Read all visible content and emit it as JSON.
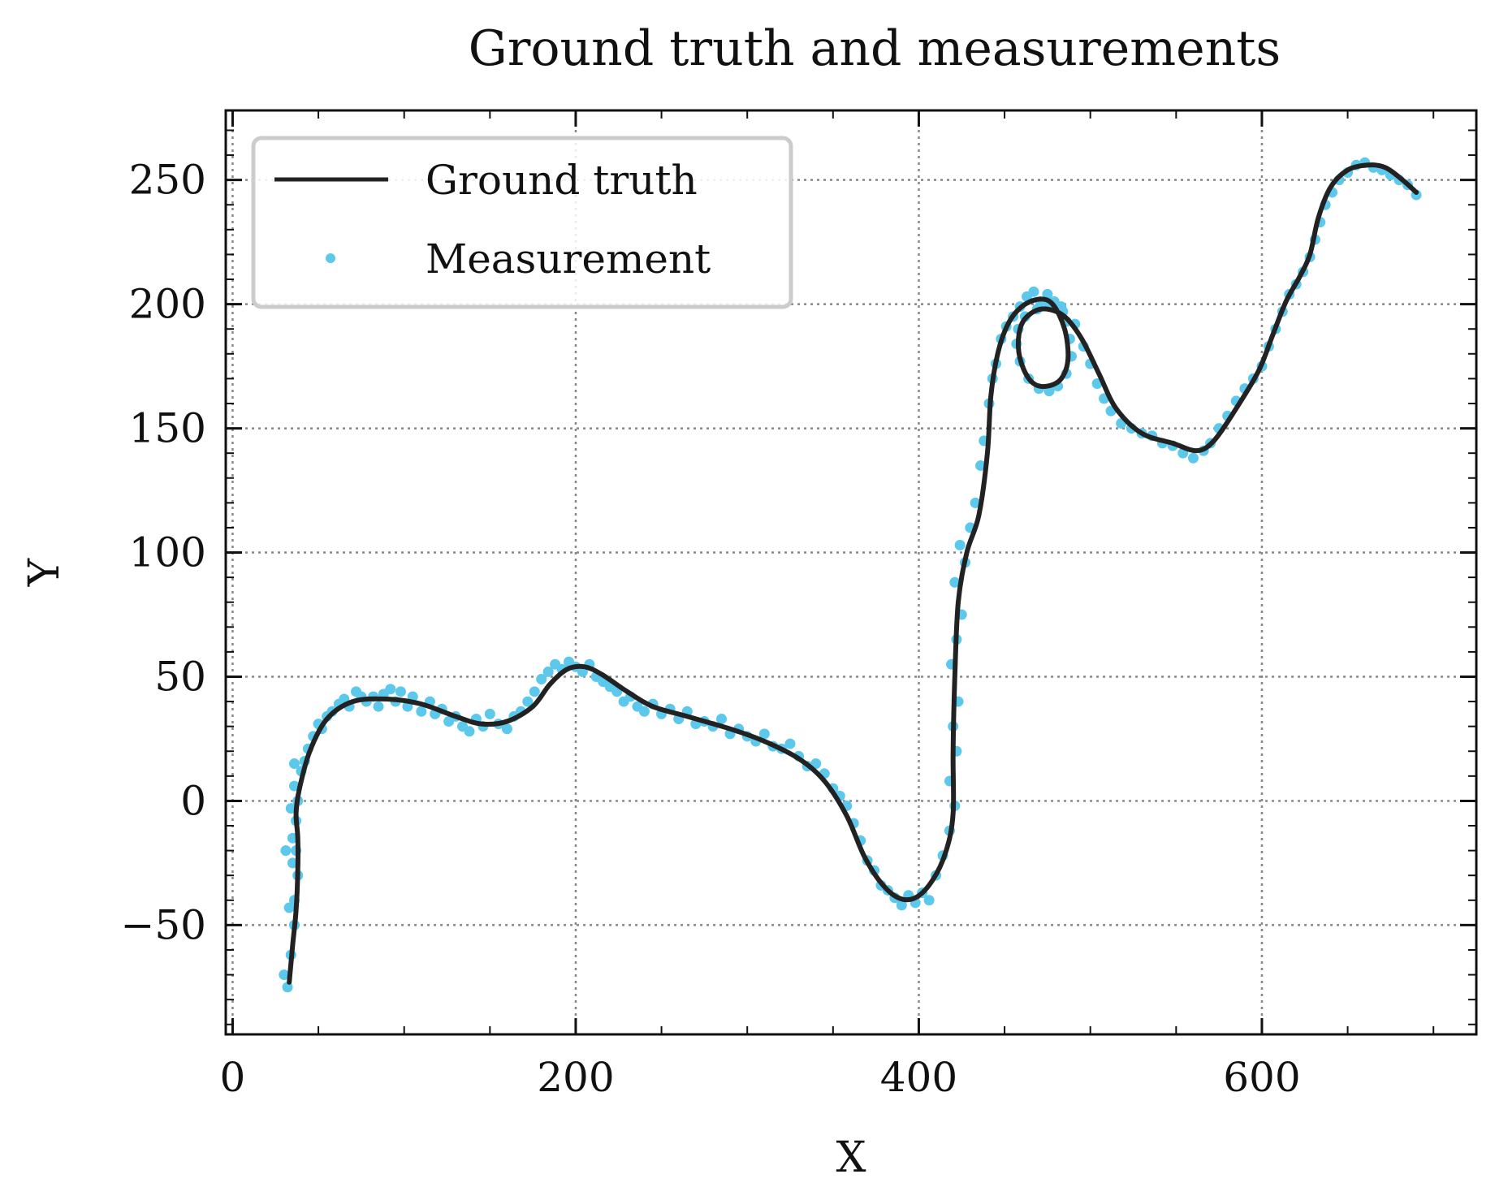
{
  "chart_data": {
    "type": "line",
    "title": "Ground truth and measurements",
    "xlabel": "X",
    "ylabel": "Y",
    "xlim": [
      -4,
      725
    ],
    "ylim": [
      -94,
      278
    ],
    "xticks": [
      0,
      200,
      400,
      600
    ],
    "yticks": [
      -50,
      0,
      50,
      100,
      150,
      200,
      250
    ],
    "x_minor_step": 50,
    "y_minor_step": 10,
    "x_tick_labels": [
      "0",
      "200",
      "400",
      "600"
    ],
    "y_tick_labels": [
      "−50",
      "0",
      "50",
      "100",
      "150",
      "200",
      "250"
    ],
    "grid": true,
    "legend": {
      "location": "top-left",
      "entries": [
        "Ground truth",
        "Measurement"
      ]
    },
    "colors": {
      "ground_truth": "#222222",
      "measurement": "#5bc8ec"
    },
    "series": [
      {
        "name": "Ground truth",
        "kind": "line",
        "points": [
          [
            33,
            -73
          ],
          [
            35,
            -58
          ],
          [
            37,
            -44
          ],
          [
            38,
            -28
          ],
          [
            38,
            -15
          ],
          [
            37,
            -5
          ],
          [
            39,
            5
          ],
          [
            45,
            20
          ],
          [
            55,
            33
          ],
          [
            70,
            40
          ],
          [
            90,
            41
          ],
          [
            110,
            39
          ],
          [
            130,
            34
          ],
          [
            145,
            31
          ],
          [
            160,
            32
          ],
          [
            175,
            38
          ],
          [
            185,
            47
          ],
          [
            195,
            53
          ],
          [
            205,
            54
          ],
          [
            215,
            51
          ],
          [
            230,
            44
          ],
          [
            245,
            38
          ],
          [
            265,
            34
          ],
          [
            290,
            29
          ],
          [
            310,
            24
          ],
          [
            330,
            17
          ],
          [
            345,
            8
          ],
          [
            358,
            -6
          ],
          [
            368,
            -22
          ],
          [
            378,
            -33
          ],
          [
            388,
            -39
          ],
          [
            398,
            -39
          ],
          [
            408,
            -32
          ],
          [
            416,
            -20
          ],
          [
            420,
            -5
          ],
          [
            420,
            20
          ],
          [
            421,
            50
          ],
          [
            423,
            80
          ],
          [
            428,
            100
          ],
          [
            435,
            115
          ],
          [
            440,
            140
          ],
          [
            442,
            163
          ],
          [
            446,
            180
          ],
          [
            452,
            192
          ],
          [
            460,
            199
          ],
          [
            470,
            202
          ],
          [
            478,
            200
          ],
          [
            485,
            190
          ],
          [
            487,
            178
          ],
          [
            483,
            170
          ],
          [
            475,
            167
          ],
          [
            467,
            168
          ],
          [
            461,
            174
          ],
          [
            458,
            183
          ],
          [
            460,
            192
          ],
          [
            467,
            197
          ],
          [
            475,
            198
          ],
          [
            485,
            195
          ],
          [
            495,
            186
          ],
          [
            505,
            172
          ],
          [
            515,
            158
          ],
          [
            530,
            148
          ],
          [
            548,
            144
          ],
          [
            562,
            141
          ],
          [
            572,
            145
          ],
          [
            585,
            158
          ],
          [
            598,
            173
          ],
          [
            606,
            187
          ],
          [
            614,
            201
          ],
          [
            622,
            211
          ],
          [
            628,
            220
          ],
          [
            633,
            235
          ],
          [
            640,
            247
          ],
          [
            650,
            254
          ],
          [
            662,
            256
          ],
          [
            672,
            255
          ],
          [
            682,
            250
          ],
          [
            690,
            245
          ]
        ]
      },
      {
        "name": "Measurement",
        "kind": "scatter",
        "points": [
          [
            30,
            -70
          ],
          [
            32,
            -75
          ],
          [
            34,
            -62
          ],
          [
            36,
            -50
          ],
          [
            33,
            -43
          ],
          [
            36,
            -40
          ],
          [
            38,
            -30
          ],
          [
            35,
            -25
          ],
          [
            37,
            -20
          ],
          [
            31,
            -20
          ],
          [
            35,
            -15
          ],
          [
            37,
            -8
          ],
          [
            34,
            -3
          ],
          [
            38,
            0
          ],
          [
            36,
            6
          ],
          [
            40,
            12
          ],
          [
            36,
            15
          ],
          [
            42,
            16
          ],
          [
            44,
            21
          ],
          [
            47,
            26
          ],
          [
            50,
            31
          ],
          [
            52,
            29
          ],
          [
            55,
            34
          ],
          [
            58,
            36
          ],
          [
            62,
            39
          ],
          [
            65,
            41
          ],
          [
            68,
            38
          ],
          [
            72,
            44
          ],
          [
            75,
            42
          ],
          [
            78,
            40
          ],
          [
            82,
            42
          ],
          [
            85,
            38
          ],
          [
            88,
            43
          ],
          [
            92,
            45
          ],
          [
            95,
            40
          ],
          [
            98,
            44
          ],
          [
            102,
            38
          ],
          [
            105,
            42
          ],
          [
            110,
            36
          ],
          [
            115,
            40
          ],
          [
            118,
            35
          ],
          [
            122,
            37
          ],
          [
            126,
            32
          ],
          [
            130,
            34
          ],
          [
            134,
            30
          ],
          [
            138,
            28
          ],
          [
            142,
            33
          ],
          [
            146,
            30
          ],
          [
            150,
            35
          ],
          [
            155,
            31
          ],
          [
            160,
            29
          ],
          [
            164,
            34
          ],
          [
            168,
            36
          ],
          [
            172,
            40
          ],
          [
            176,
            44
          ],
          [
            180,
            49
          ],
          [
            184,
            52
          ],
          [
            188,
            55
          ],
          [
            192,
            53
          ],
          [
            196,
            56
          ],
          [
            200,
            54
          ],
          [
            204,
            52
          ],
          [
            208,
            55
          ],
          [
            212,
            50
          ],
          [
            216,
            48
          ],
          [
            220,
            46
          ],
          [
            224,
            44
          ],
          [
            228,
            40
          ],
          [
            232,
            42
          ],
          [
            236,
            38
          ],
          [
            240,
            36
          ],
          [
            245,
            39
          ],
          [
            250,
            35
          ],
          [
            255,
            37
          ],
          [
            260,
            33
          ],
          [
            265,
            36
          ],
          [
            270,
            31
          ],
          [
            275,
            32
          ],
          [
            280,
            30
          ],
          [
            285,
            33
          ],
          [
            290,
            27
          ],
          [
            295,
            29
          ],
          [
            300,
            26
          ],
          [
            305,
            24
          ],
          [
            310,
            27
          ],
          [
            315,
            22
          ],
          [
            320,
            21
          ],
          [
            325,
            23
          ],
          [
            330,
            18
          ],
          [
            335,
            14
          ],
          [
            340,
            15
          ],
          [
            345,
            11
          ],
          [
            350,
            5
          ],
          [
            354,
            2
          ],
          [
            358,
            -2
          ],
          [
            362,
            -9
          ],
          [
            366,
            -16
          ],
          [
            370,
            -24
          ],
          [
            374,
            -28
          ],
          [
            378,
            -34
          ],
          [
            382,
            -36
          ],
          [
            386,
            -39
          ],
          [
            390,
            -42
          ],
          [
            394,
            -38
          ],
          [
            398,
            -41
          ],
          [
            402,
            -37
          ],
          [
            406,
            -40
          ],
          [
            410,
            -30
          ],
          [
            414,
            -22
          ],
          [
            418,
            -12
          ],
          [
            421,
            -2
          ],
          [
            418,
            8
          ],
          [
            422,
            20
          ],
          [
            420,
            30
          ],
          [
            423,
            40
          ],
          [
            419,
            55
          ],
          [
            422,
            65
          ],
          [
            425,
            75
          ],
          [
            421,
            88
          ],
          [
            427,
            96
          ],
          [
            424,
            103
          ],
          [
            430,
            110
          ],
          [
            433,
            120
          ],
          [
            436,
            135
          ],
          [
            438,
            145
          ],
          [
            441,
            160
          ],
          [
            443,
            170
          ],
          [
            445,
            176
          ],
          [
            448,
            186
          ],
          [
            451,
            191
          ],
          [
            455,
            195
          ],
          [
            459,
            199
          ],
          [
            463,
            203
          ],
          [
            467,
            205
          ],
          [
            471,
            201
          ],
          [
            475,
            204
          ],
          [
            479,
            201
          ],
          [
            483,
            199
          ],
          [
            486,
            193
          ],
          [
            488,
            186
          ],
          [
            489,
            179
          ],
          [
            486,
            172
          ],
          [
            481,
            167
          ],
          [
            476,
            165
          ],
          [
            470,
            166
          ],
          [
            464,
            170
          ],
          [
            459,
            177
          ],
          [
            457,
            184
          ],
          [
            458,
            190
          ],
          [
            462,
            195
          ],
          [
            469,
            198
          ],
          [
            476,
            199
          ],
          [
            484,
            197
          ],
          [
            491,
            192
          ],
          [
            496,
            183
          ],
          [
            500,
            176
          ],
          [
            504,
            168
          ],
          [
            508,
            162
          ],
          [
            512,
            157
          ],
          [
            518,
            152
          ],
          [
            524,
            150
          ],
          [
            530,
            148
          ],
          [
            536,
            147
          ],
          [
            542,
            144
          ],
          [
            548,
            143
          ],
          [
            554,
            140
          ],
          [
            560,
            138
          ],
          [
            566,
            141
          ],
          [
            570,
            144
          ],
          [
            575,
            150
          ],
          [
            580,
            155
          ],
          [
            585,
            161
          ],
          [
            590,
            166
          ],
          [
            595,
            170
          ],
          [
            600,
            175
          ],
          [
            604,
            183
          ],
          [
            608,
            190
          ],
          [
            612,
            197
          ],
          [
            616,
            204
          ],
          [
            620,
            208
          ],
          [
            624,
            213
          ],
          [
            628,
            219
          ],
          [
            631,
            226
          ],
          [
            634,
            233
          ],
          [
            637,
            240
          ],
          [
            641,
            245
          ],
          [
            645,
            250
          ],
          [
            650,
            253
          ],
          [
            655,
            256
          ],
          [
            660,
            257
          ],
          [
            665,
            255
          ],
          [
            670,
            254
          ],
          [
            675,
            252
          ],
          [
            680,
            250
          ],
          [
            685,
            248
          ],
          [
            690,
            244
          ]
        ]
      }
    ]
  }
}
